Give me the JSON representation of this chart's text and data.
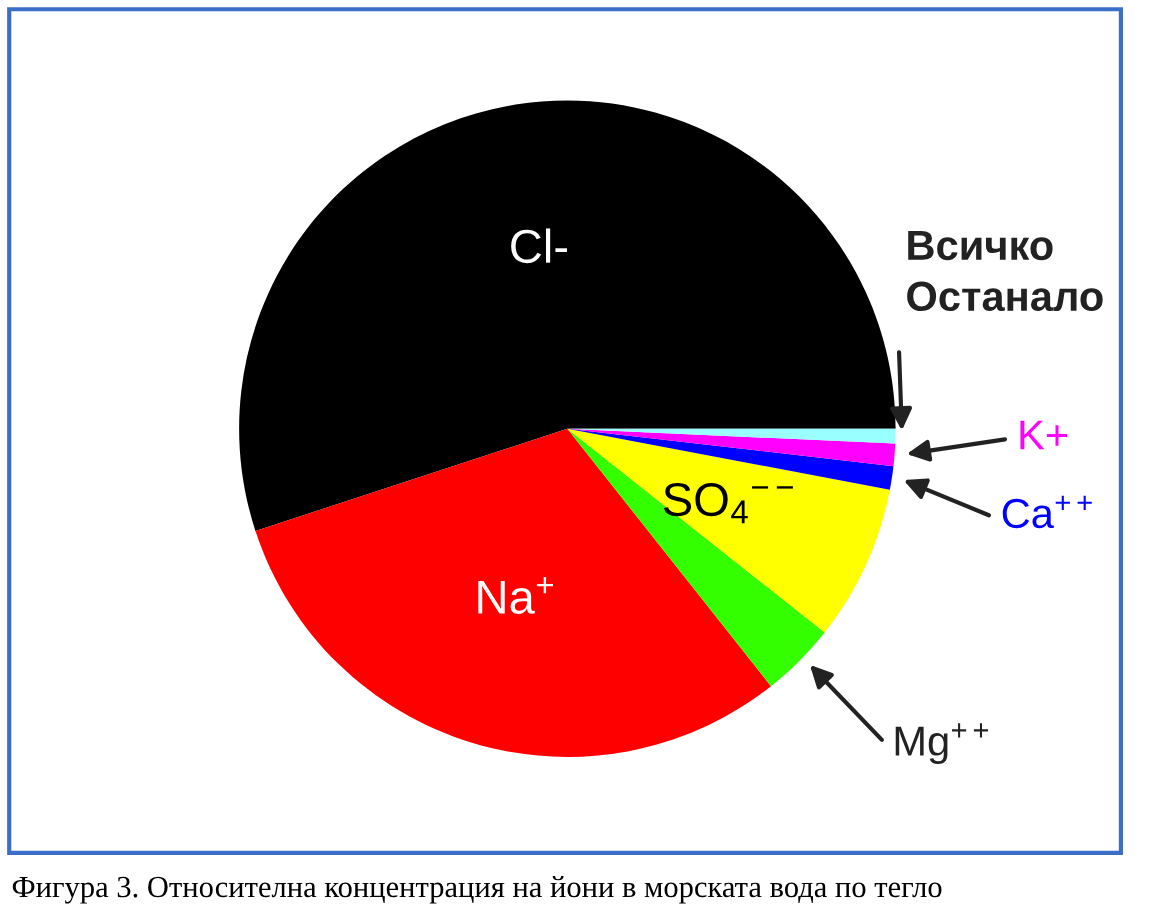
{
  "chart_data": {
    "type": "pie",
    "categories": [
      "Cl-",
      "Na$^{+}$",
      "Mg$^{++}$",
      "SO$_{4}$$^{−−}$",
      "Ca$^{++}$",
      "K+",
      "Всичко Останало"
    ],
    "values": [
      55.04,
      30.61,
      3.69,
      7.68,
      1.16,
      1.1,
      0.72
    ],
    "colors": [
      "#000000",
      "#ff0000",
      "#33ff00",
      "#ffff00",
      "#0000ff",
      "#ff00ff",
      "#99ffff"
    ],
    "legend": false,
    "annotations": [
      "Фигура 3. Относителна концентрация на йони в морската вода по тегло"
    ]
  }
}
